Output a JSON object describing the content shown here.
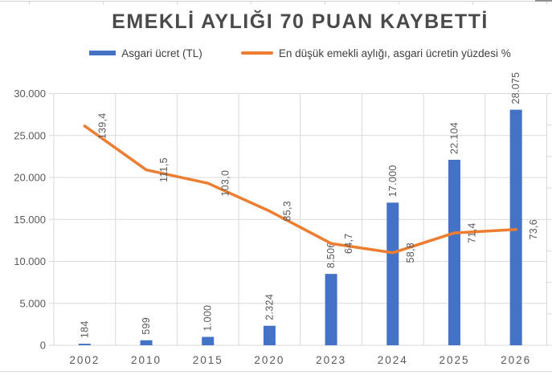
{
  "chart_data": {
    "type": "combo-bar-line",
    "title": "EMEKLİ AYLIĞI 70 PUAN KAYBETTİ",
    "categories": [
      "2002",
      "2010",
      "2015",
      "2020",
      "2023",
      "2024",
      "2025",
      "2026"
    ],
    "series": [
      {
        "name": "Asgari ücret (TL)",
        "type": "bar",
        "axis": "left",
        "color": "#4472C4",
        "values": [
          184,
          599,
          1000,
          2324,
          8506,
          17000,
          22104,
          28075
        ],
        "labels": [
          "184",
          "599",
          "1.000",
          "2.324",
          "8.506",
          "17.000",
          "22.104",
          "28.075"
        ]
      },
      {
        "name": "En düşük emekli aylığı, asgari ücretin yüzdesi %",
        "type": "line",
        "axis": "right",
        "color": "#ED7D31",
        "values": [
          139.4,
          111.5,
          103.0,
          85.3,
          64.7,
          58.8,
          71.4,
          73.6
        ],
        "labels": [
          "139,4",
          "111,5",
          "103,0",
          "85,3",
          "64,7",
          "58,8",
          "71,4",
          "73,6"
        ]
      }
    ],
    "left_axis": {
      "min": 0,
      "max": 30000,
      "step": 5000,
      "tick_labels": [
        "0",
        "5.000",
        "10.000",
        "15.000",
        "20.000",
        "25.000",
        "30.000"
      ]
    },
    "right_axis": {
      "min": 0,
      "max": 160,
      "step": 20,
      "labels_hidden": true
    },
    "legend_position": "top",
    "grid": true
  },
  "colors": {
    "bar": "#4472C4",
    "line": "#ED7D31",
    "grid": "#D9D9D9",
    "axis": "#D9D9D9",
    "label": "#595959",
    "title": "#4A4A4A",
    "legend_text": "#404040"
  }
}
